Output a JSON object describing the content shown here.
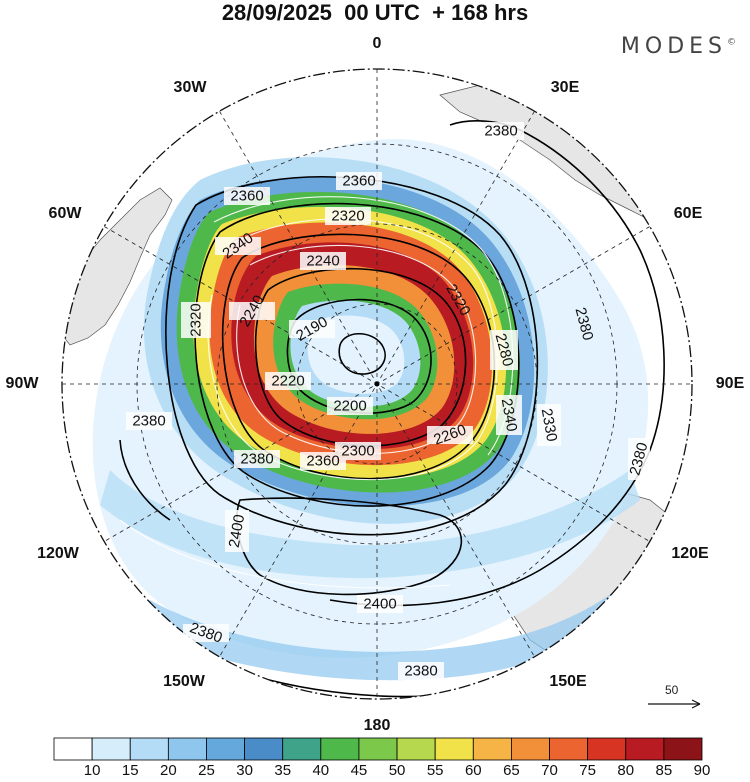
{
  "header": {
    "title": "28/09/2025  00 UTC  + 168 hrs",
    "brand": "MODES",
    "brand_mark": "©"
  },
  "map": {
    "projection": "south-polar-stereographic",
    "longitude_labels": {
      "top": "0",
      "upper_left": "30W",
      "upper_right": "30E",
      "mid_upper_left": "60W",
      "mid_upper_right": "60E",
      "left": "90W",
      "right": "90E",
      "lower_left": "120W",
      "lower_right": "120E",
      "bottom_left": "150W",
      "bottom_right": "150E",
      "bottom": "180"
    },
    "contour_labels": [
      {
        "id": "c1",
        "text": "2380"
      },
      {
        "id": "c2",
        "text": "2360"
      },
      {
        "id": "c3",
        "text": "2360"
      },
      {
        "id": "c4",
        "text": "2320"
      },
      {
        "id": "c5",
        "text": "2340"
      },
      {
        "id": "c6",
        "text": "2240"
      },
      {
        "id": "c7",
        "text": "2190"
      },
      {
        "id": "c8",
        "text": "2240"
      },
      {
        "id": "c9",
        "text": "2320"
      },
      {
        "id": "c10",
        "text": "2280"
      },
      {
        "id": "c11",
        "text": "2220"
      },
      {
        "id": "c12",
        "text": "2200"
      },
      {
        "id": "c13",
        "text": "2260"
      },
      {
        "id": "c14",
        "text": "2300"
      },
      {
        "id": "c15",
        "text": "2340"
      },
      {
        "id": "c16",
        "text": "2330"
      },
      {
        "id": "c17",
        "text": "2380"
      },
      {
        "id": "c18",
        "text": "2380"
      },
      {
        "id": "c19",
        "text": "2380"
      },
      {
        "id": "c20",
        "text": "2360"
      },
      {
        "id": "c21",
        "text": "2380"
      },
      {
        "id": "c22",
        "text": "2400"
      },
      {
        "id": "c23",
        "text": "2400"
      },
      {
        "id": "c24",
        "text": "2380"
      },
      {
        "id": "c25",
        "text": "2380"
      },
      {
        "id": "c26",
        "text": "2320"
      }
    ],
    "wind_scale_label": "50"
  },
  "colorbar": {
    "ticks": [
      "10",
      "15",
      "20",
      "25",
      "30",
      "35",
      "40",
      "45",
      "50",
      "55",
      "60",
      "65",
      "70",
      "75",
      "80",
      "85",
      "90"
    ],
    "colors": [
      "#ffffff",
      "#d6eefc",
      "#b4dcf6",
      "#8ec6ee",
      "#64a8dc",
      "#4a8cc8",
      "#3fa38a",
      "#4fb84a",
      "#7cc84a",
      "#b6d84e",
      "#f2e24a",
      "#f6b446",
      "#f2903a",
      "#ec6430",
      "#d83424",
      "#b81c22",
      "#8c1418"
    ]
  },
  "colors": {
    "land": "#e8e8e8",
    "coast": "#666666",
    "contour": "#000000"
  }
}
